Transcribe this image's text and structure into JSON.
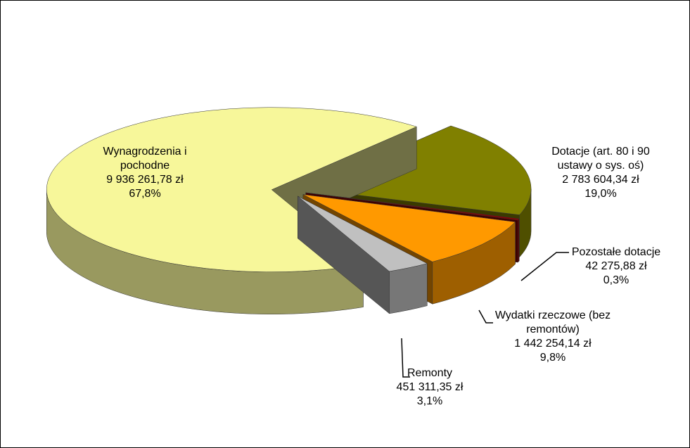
{
  "chart_data": {
    "type": "pie",
    "categories": [
      "Wynagrodzenia i pochodne",
      "Dotacje (art. 80 i 90 ustawy o sys. oś)",
      "Pozostałe dotacje",
      "Wydatki rzeczowe (bez remontów)",
      "Remonty"
    ],
    "values": [
      9936261.78,
      2783604.34,
      42275.88,
      1442254.14,
      451311.35
    ],
    "value_labels": [
      "9 936 261,78 zł",
      "2 783 604,34 zł",
      "42 275,88 zł",
      "1 442 254,14 zł",
      "451 311,35 zł"
    ],
    "percents": [
      67.8,
      19.0,
      0.3,
      9.8,
      3.1
    ],
    "percent_labels": [
      "67,8%",
      "19,0%",
      "0,3%",
      "9,8%",
      "3,1%"
    ],
    "colors": [
      "#f7f79a",
      "#808000",
      "#8b0000",
      "#ff9900",
      "#c0c0c0"
    ]
  }
}
